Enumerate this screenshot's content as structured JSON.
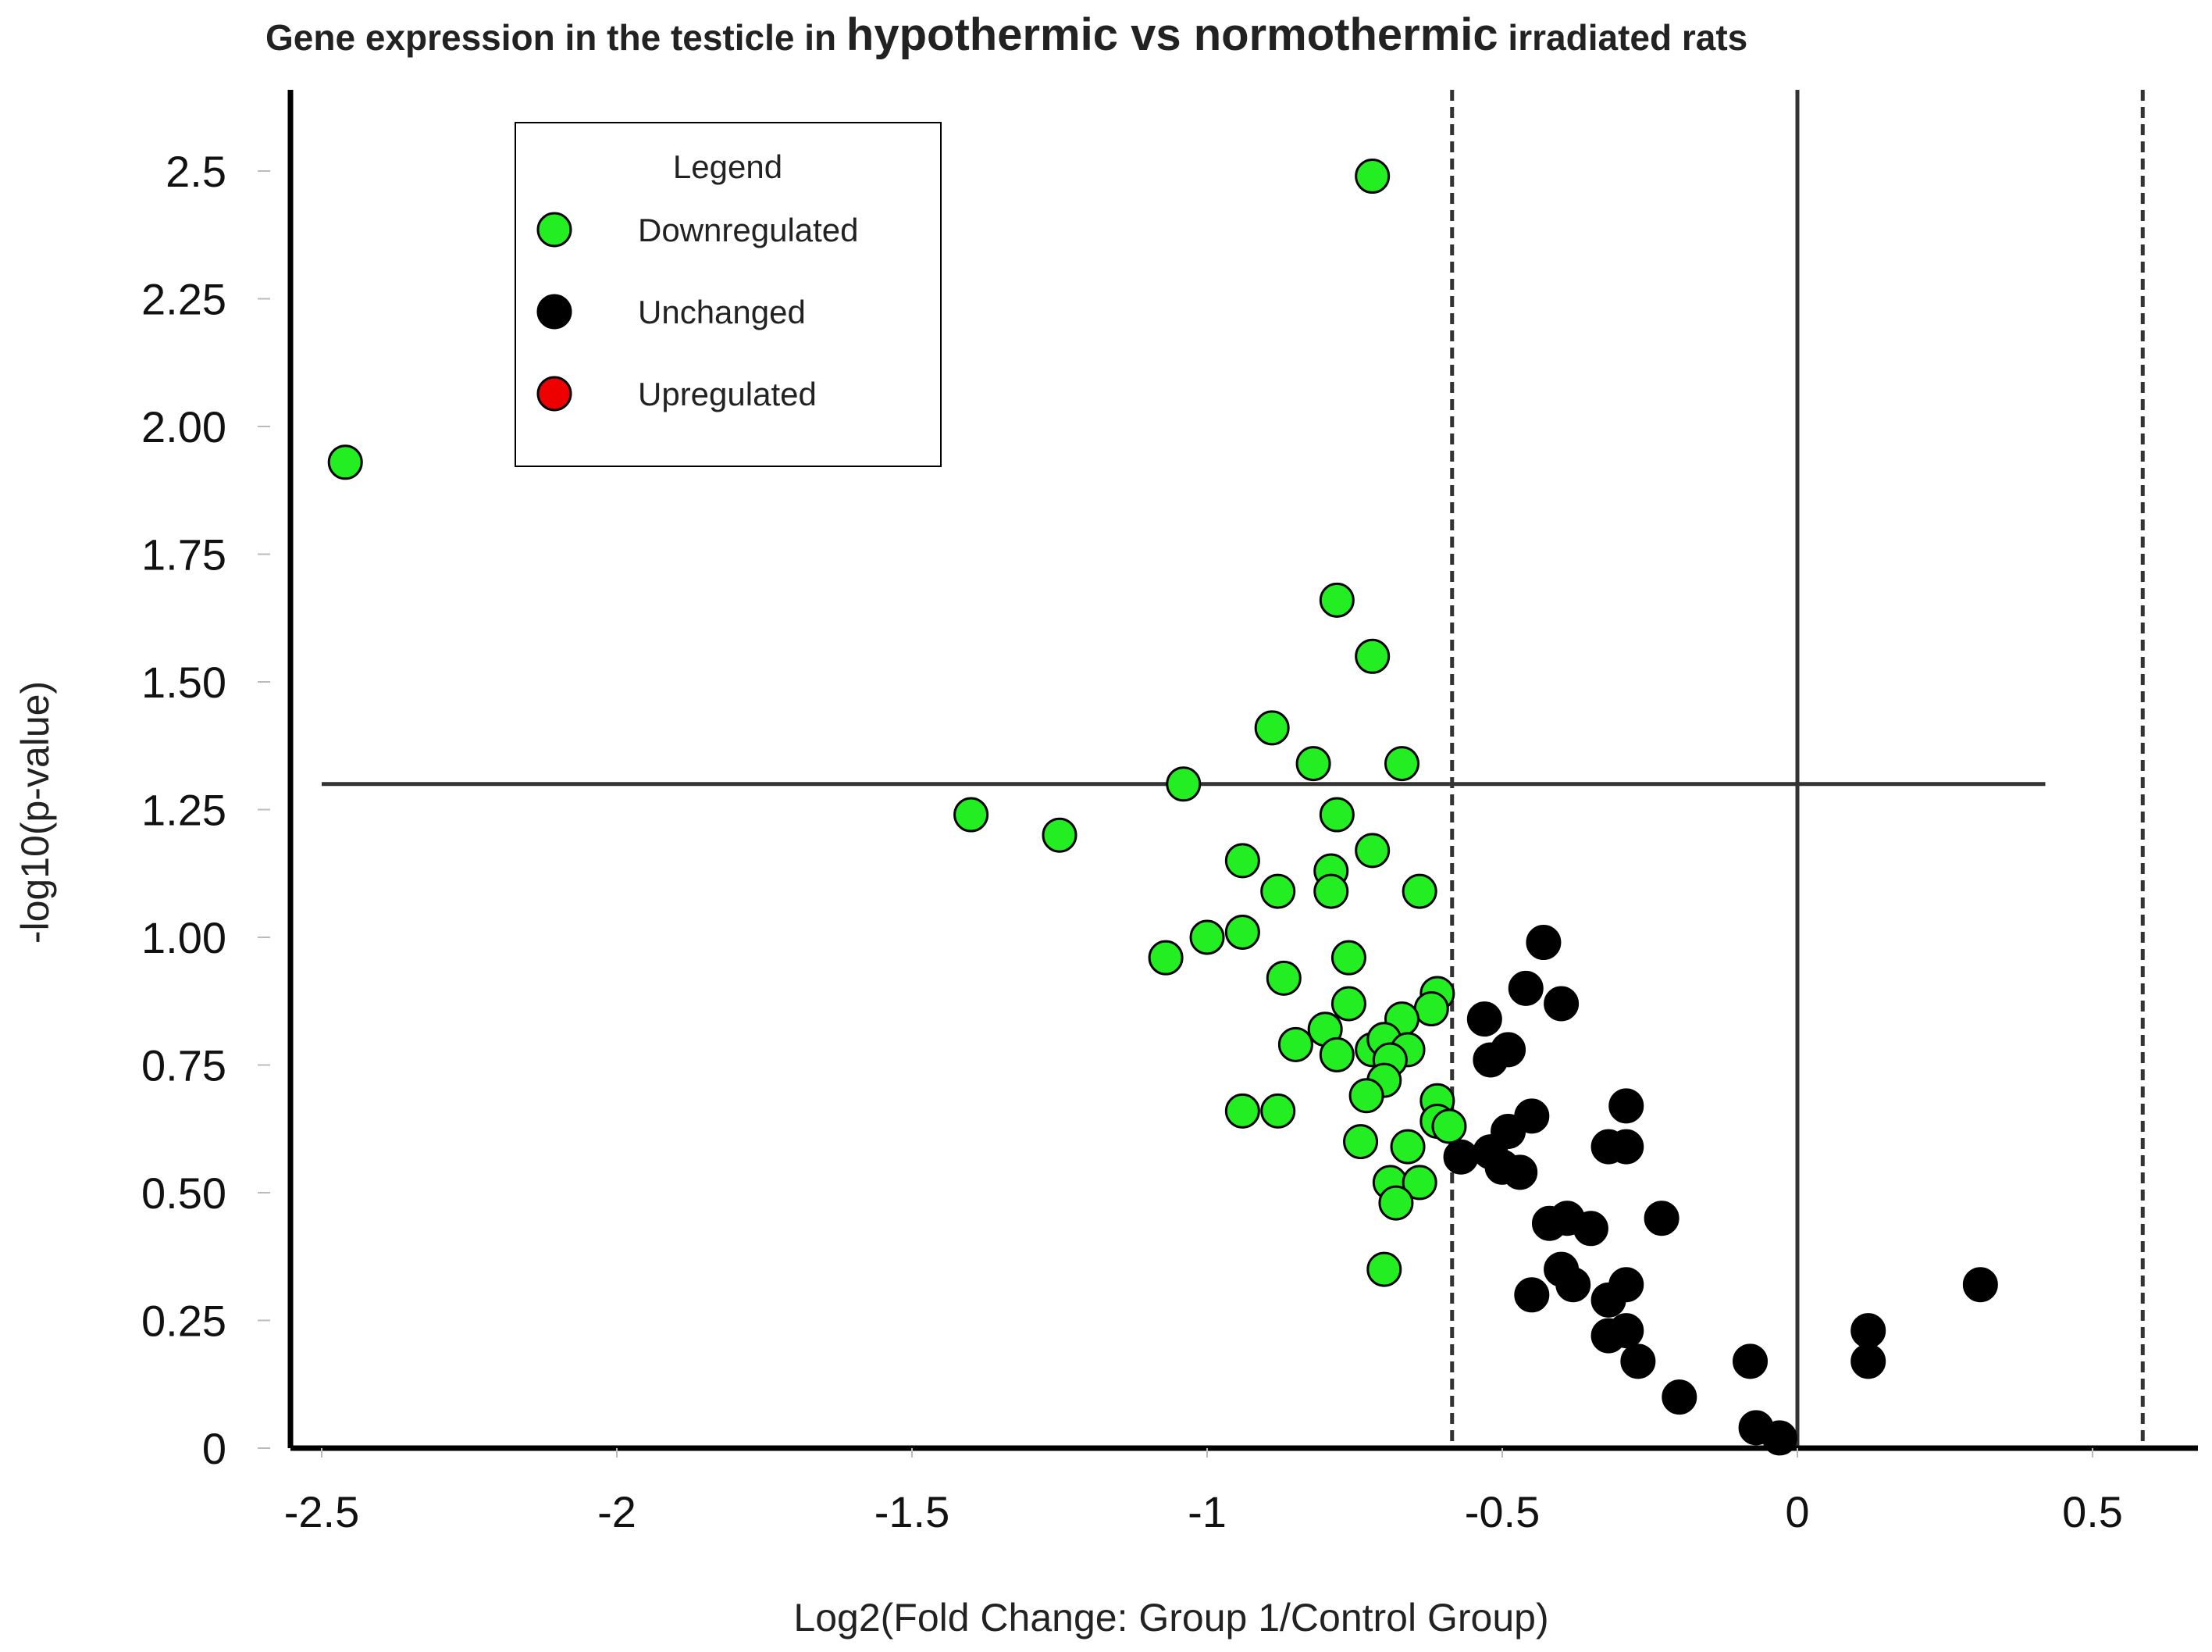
{
  "chart_data": {
    "type": "scatter",
    "title_parts": [
      {
        "text": "Gene expression in the testicle in ",
        "emphasis": "normal"
      },
      {
        "text": "hypothermic vs normothermic",
        "emphasis": "large"
      },
      {
        "text": " irradiated rats",
        "emphasis": "normal"
      }
    ],
    "xlabel": "Log2(Fold Change: Group 1/Control Group)",
    "ylabel": "-log10(p-value)",
    "xlim": [
      -2.55,
      0.67
    ],
    "ylim": [
      0,
      2.63
    ],
    "x_ticks": [
      {
        "value": -2.5,
        "label": "-2.5"
      },
      {
        "value": -2,
        "label": "-2"
      },
      {
        "value": -1.5,
        "label": "-1.5"
      },
      {
        "value": -1,
        "label": "-1"
      },
      {
        "value": -0.5,
        "label": "-0.5"
      },
      {
        "value": 0,
        "label": "0"
      },
      {
        "value": 0.5,
        "label": "0.5"
      }
    ],
    "y_ticks": [
      {
        "value": 0,
        "label": "0"
      },
      {
        "value": 0.25,
        "label": "0.25"
      },
      {
        "value": 0.5,
        "label": "0.50"
      },
      {
        "value": 0.75,
        "label": "0.75"
      },
      {
        "value": 1.0,
        "label": "1.00"
      },
      {
        "value": 1.25,
        "label": "1.25"
      },
      {
        "value": 1.5,
        "label": "1.50"
      },
      {
        "value": 1.75,
        "label": "1.75"
      },
      {
        "value": 2.0,
        "label": "2.00"
      },
      {
        "value": 2.25,
        "label": "2.25"
      },
      {
        "value": 2.5,
        "label": "2.5"
      }
    ],
    "reference_lines": {
      "horizontal": {
        "y": 1.3,
        "x_range": [
          -2.5,
          0.42
        ],
        "style": "solid"
      },
      "vertical": [
        {
          "x": -0.585,
          "style": "dashed"
        },
        {
          "x": 0,
          "style": "solid"
        },
        {
          "x": 0.585,
          "style": "dashed"
        }
      ]
    },
    "legend": {
      "title": "Legend",
      "position": "top-left",
      "items": [
        {
          "label": "Downregulated",
          "color": "#22ee22"
        },
        {
          "label": "Unchanged",
          "color": "#000000"
        },
        {
          "label": "Upregulated",
          "color": "#ee0000"
        }
      ]
    },
    "series": [
      {
        "name": "Downregulated",
        "color": "#22ee22",
        "points": [
          [
            -0.72,
            2.49
          ],
          [
            -2.46,
            1.93
          ],
          [
            -0.78,
            1.66
          ],
          [
            -0.72,
            1.55
          ],
          [
            -0.89,
            1.41
          ],
          [
            -0.82,
            1.34
          ],
          [
            -0.67,
            1.34
          ],
          [
            -1.04,
            1.3
          ],
          [
            -1.4,
            1.24
          ],
          [
            -1.25,
            1.2
          ],
          [
            -0.78,
            1.24
          ],
          [
            -0.72,
            1.17
          ],
          [
            -0.94,
            1.15
          ],
          [
            -0.79,
            1.13
          ],
          [
            -0.88,
            1.09
          ],
          [
            -0.79,
            1.09
          ],
          [
            -0.64,
            1.09
          ],
          [
            -1.07,
            0.96
          ],
          [
            -1.0,
            1.0
          ],
          [
            -0.94,
            1.01
          ],
          [
            -0.76,
            0.96
          ],
          [
            -0.87,
            0.92
          ],
          [
            -0.61,
            0.89
          ],
          [
            -0.76,
            0.87
          ],
          [
            -0.62,
            0.86
          ],
          [
            -0.67,
            0.84
          ],
          [
            -0.8,
            0.82
          ],
          [
            -0.85,
            0.79
          ],
          [
            -0.78,
            0.77
          ],
          [
            -0.72,
            0.78
          ],
          [
            -0.7,
            0.8
          ],
          [
            -0.66,
            0.78
          ],
          [
            -0.69,
            0.76
          ],
          [
            -0.7,
            0.72
          ],
          [
            -0.73,
            0.69
          ],
          [
            -0.61,
            0.68
          ],
          [
            -0.94,
            0.66
          ],
          [
            -0.88,
            0.66
          ],
          [
            -0.61,
            0.64
          ],
          [
            -0.59,
            0.63
          ],
          [
            -0.74,
            0.6
          ],
          [
            -0.66,
            0.59
          ],
          [
            -0.69,
            0.52
          ],
          [
            -0.64,
            0.52
          ],
          [
            -0.68,
            0.48
          ],
          [
            -0.7,
            0.35
          ]
        ]
      },
      {
        "name": "Unchanged",
        "color": "#000000",
        "points": [
          [
            -0.43,
            0.99
          ],
          [
            -0.46,
            0.9
          ],
          [
            -0.4,
            0.87
          ],
          [
            -0.53,
            0.84
          ],
          [
            -0.49,
            0.78
          ],
          [
            -0.52,
            0.76
          ],
          [
            -0.29,
            0.67
          ],
          [
            -0.45,
            0.65
          ],
          [
            -0.49,
            0.62
          ],
          [
            -0.32,
            0.59
          ],
          [
            -0.29,
            0.59
          ],
          [
            -0.52,
            0.58
          ],
          [
            -0.57,
            0.57
          ],
          [
            -0.5,
            0.55
          ],
          [
            -0.47,
            0.54
          ],
          [
            -0.39,
            0.45
          ],
          [
            -0.42,
            0.44
          ],
          [
            -0.35,
            0.43
          ],
          [
            -0.23,
            0.45
          ],
          [
            -0.4,
            0.35
          ],
          [
            -0.38,
            0.32
          ],
          [
            -0.45,
            0.3
          ],
          [
            -0.29,
            0.32
          ],
          [
            -0.32,
            0.29
          ],
          [
            0.31,
            0.32
          ],
          [
            -0.32,
            0.22
          ],
          [
            -0.29,
            0.23
          ],
          [
            0.12,
            0.23
          ],
          [
            -0.27,
            0.17
          ],
          [
            -0.08,
            0.17
          ],
          [
            0.12,
            0.17
          ],
          [
            -0.2,
            0.1
          ],
          [
            -0.07,
            0.04
          ],
          [
            -0.03,
            0.02
          ]
        ]
      },
      {
        "name": "Upregulated",
        "color": "#ee0000",
        "points": []
      }
    ]
  }
}
